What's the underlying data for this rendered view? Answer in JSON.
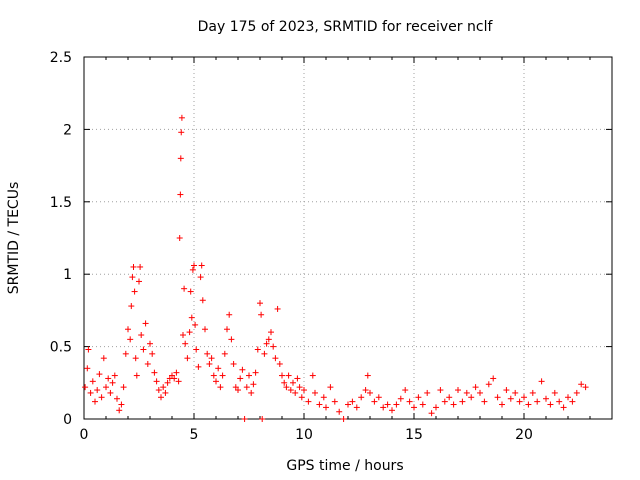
{
  "chart_data": {
    "type": "scatter",
    "title": "Day 175 of 2023, SRMTID for receiver nclf",
    "xlabel": "GPS time / hours",
    "ylabel": "SRMTID / TECUs",
    "xlim": [
      0,
      24
    ],
    "ylim": [
      0,
      2.5
    ],
    "xticks": [
      0,
      5,
      10,
      15,
      20
    ],
    "xtick_labels": [
      "0",
      "5",
      "10",
      "15",
      "20"
    ],
    "yticks": [
      0,
      0.5,
      1,
      1.5,
      2,
      2.5
    ],
    "ytick_labels": [
      "0",
      "0.5",
      "1",
      "1.5",
      "2",
      "2.5"
    ],
    "grid": true,
    "marker": "+",
    "color": "#ff0000",
    "series": [
      {
        "name": "SRMTID",
        "points": [
          [
            0.05,
            0.22
          ],
          [
            0.15,
            0.35
          ],
          [
            0.2,
            0.48
          ],
          [
            0.3,
            0.18
          ],
          [
            0.4,
            0.26
          ],
          [
            0.5,
            0.12
          ],
          [
            0.6,
            0.2
          ],
          [
            0.7,
            0.31
          ],
          [
            0.8,
            0.15
          ],
          [
            0.9,
            0.42
          ],
          [
            1.0,
            0.22
          ],
          [
            1.1,
            0.28
          ],
          [
            1.2,
            0.18
          ],
          [
            1.3,
            0.25
          ],
          [
            1.4,
            0.3
          ],
          [
            1.5,
            0.14
          ],
          [
            1.6,
            0.06
          ],
          [
            1.7,
            0.1
          ],
          [
            1.8,
            0.22
          ],
          [
            1.9,
            0.45
          ],
          [
            2.0,
            0.62
          ],
          [
            2.1,
            0.55
          ],
          [
            2.15,
            0.78
          ],
          [
            2.2,
            0.98
          ],
          [
            2.25,
            1.05
          ],
          [
            2.3,
            0.88
          ],
          [
            2.35,
            0.42
          ],
          [
            2.4,
            0.3
          ],
          [
            2.5,
            0.95
          ],
          [
            2.55,
            1.05
          ],
          [
            2.6,
            0.58
          ],
          [
            2.7,
            0.48
          ],
          [
            2.8,
            0.66
          ],
          [
            2.9,
            0.38
          ],
          [
            3.0,
            0.52
          ],
          [
            3.1,
            0.45
          ],
          [
            3.2,
            0.32
          ],
          [
            3.3,
            0.26
          ],
          [
            3.4,
            0.2
          ],
          [
            3.5,
            0.15
          ],
          [
            3.6,
            0.22
          ],
          [
            3.7,
            0.18
          ],
          [
            3.8,
            0.25
          ],
          [
            3.9,
            0.28
          ],
          [
            4.0,
            0.3
          ],
          [
            4.1,
            0.28
          ],
          [
            4.2,
            0.32
          ],
          [
            4.3,
            0.26
          ],
          [
            4.35,
            1.25
          ],
          [
            4.38,
            1.55
          ],
          [
            4.4,
            1.8
          ],
          [
            4.42,
            1.98
          ],
          [
            4.45,
            2.08
          ],
          [
            4.5,
            0.58
          ],
          [
            4.55,
            0.9
          ],
          [
            4.6,
            0.52
          ],
          [
            4.7,
            0.42
          ],
          [
            4.8,
            0.6
          ],
          [
            4.85,
            0.88
          ],
          [
            4.9,
            0.7
          ],
          [
            4.95,
            1.03
          ],
          [
            5.0,
            1.06
          ],
          [
            5.05,
            0.65
          ],
          [
            5.1,
            0.48
          ],
          [
            5.2,
            0.36
          ],
          [
            5.3,
            0.98
          ],
          [
            5.35,
            1.06
          ],
          [
            5.4,
            0.82
          ],
          [
            5.5,
            0.62
          ],
          [
            5.6,
            0.45
          ],
          [
            5.7,
            0.38
          ],
          [
            5.8,
            0.42
          ],
          [
            5.9,
            0.3
          ],
          [
            6.0,
            0.26
          ],
          [
            6.1,
            0.35
          ],
          [
            6.2,
            0.22
          ],
          [
            6.3,
            0.3
          ],
          [
            6.4,
            0.45
          ],
          [
            6.5,
            0.62
          ],
          [
            6.6,
            0.72
          ],
          [
            6.7,
            0.55
          ],
          [
            6.8,
            0.38
          ],
          [
            6.9,
            0.22
          ],
          [
            7.0,
            0.2
          ],
          [
            7.1,
            0.28
          ],
          [
            7.2,
            0.34
          ],
          [
            7.3,
            0.0
          ],
          [
            7.4,
            0.22
          ],
          [
            7.5,
            0.3
          ],
          [
            7.6,
            0.18
          ],
          [
            7.7,
            0.24
          ],
          [
            7.8,
            0.32
          ],
          [
            7.9,
            0.48
          ],
          [
            8.0,
            0.8
          ],
          [
            8.05,
            0.72
          ],
          [
            8.1,
            0.0
          ],
          [
            8.2,
            0.45
          ],
          [
            8.3,
            0.52
          ],
          [
            8.4,
            0.55
          ],
          [
            8.5,
            0.6
          ],
          [
            8.6,
            0.5
          ],
          [
            8.7,
            0.42
          ],
          [
            8.8,
            0.76
          ],
          [
            8.9,
            0.38
          ],
          [
            9.0,
            0.3
          ],
          [
            9.1,
            0.25
          ],
          [
            9.2,
            0.22
          ],
          [
            9.3,
            0.3
          ],
          [
            9.4,
            0.2
          ],
          [
            9.5,
            0.25
          ],
          [
            9.6,
            0.18
          ],
          [
            9.7,
            0.28
          ],
          [
            9.8,
            0.22
          ],
          [
            9.9,
            0.15
          ],
          [
            10.0,
            0.2
          ],
          [
            10.2,
            0.12
          ],
          [
            10.4,
            0.3
          ],
          [
            10.5,
            0.18
          ],
          [
            10.7,
            0.1
          ],
          [
            10.9,
            0.15
          ],
          [
            11.0,
            0.08
          ],
          [
            11.2,
            0.22
          ],
          [
            11.4,
            0.12
          ],
          [
            11.6,
            0.05
          ],
          [
            11.8,
            0.0
          ],
          [
            12.0,
            0.1
          ],
          [
            12.2,
            0.12
          ],
          [
            12.4,
            0.08
          ],
          [
            12.6,
            0.15
          ],
          [
            12.8,
            0.2
          ],
          [
            12.9,
            0.3
          ],
          [
            13.0,
            0.18
          ],
          [
            13.2,
            0.12
          ],
          [
            13.4,
            0.15
          ],
          [
            13.6,
            0.08
          ],
          [
            13.8,
            0.1
          ],
          [
            14.0,
            0.06
          ],
          [
            14.2,
            0.1
          ],
          [
            14.4,
            0.14
          ],
          [
            14.6,
            0.2
          ],
          [
            14.8,
            0.12
          ],
          [
            15.0,
            0.08
          ],
          [
            15.2,
            0.15
          ],
          [
            15.4,
            0.1
          ],
          [
            15.6,
            0.18
          ],
          [
            15.8,
            0.04
          ],
          [
            16.0,
            0.08
          ],
          [
            16.2,
            0.2
          ],
          [
            16.4,
            0.12
          ],
          [
            16.6,
            0.15
          ],
          [
            16.8,
            0.1
          ],
          [
            17.0,
            0.2
          ],
          [
            17.2,
            0.12
          ],
          [
            17.4,
            0.18
          ],
          [
            17.6,
            0.15
          ],
          [
            17.8,
            0.22
          ],
          [
            18.0,
            0.18
          ],
          [
            18.2,
            0.12
          ],
          [
            18.4,
            0.24
          ],
          [
            18.6,
            0.28
          ],
          [
            18.8,
            0.15
          ],
          [
            19.0,
            0.1
          ],
          [
            19.2,
            0.2
          ],
          [
            19.4,
            0.14
          ],
          [
            19.6,
            0.18
          ],
          [
            19.8,
            0.12
          ],
          [
            20.0,
            0.15
          ],
          [
            20.2,
            0.1
          ],
          [
            20.4,
            0.18
          ],
          [
            20.6,
            0.12
          ],
          [
            20.8,
            0.26
          ],
          [
            21.0,
            0.14
          ],
          [
            21.2,
            0.1
          ],
          [
            21.4,
            0.18
          ],
          [
            21.6,
            0.12
          ],
          [
            21.8,
            0.08
          ],
          [
            22.0,
            0.15
          ],
          [
            22.2,
            0.12
          ],
          [
            22.4,
            0.18
          ],
          [
            22.6,
            0.24
          ],
          [
            22.8,
            0.22
          ]
        ]
      }
    ]
  }
}
